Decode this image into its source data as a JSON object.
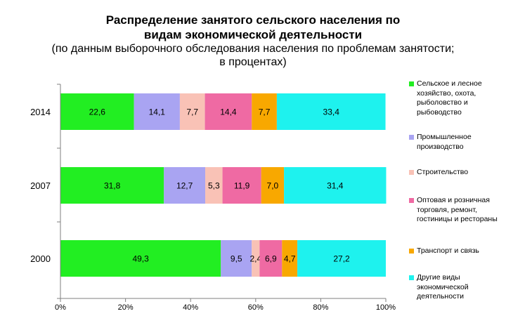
{
  "title": {
    "line1": "Распределение занятого сельского населения по",
    "line2": "видам экономической деятельности",
    "subtitle_line1": "(по данным выборочного обследования населения по проблемам занятости;",
    "subtitle_line2": "в процентах)"
  },
  "chart_data": {
    "type": "bar",
    "orientation": "horizontal",
    "stacked": true,
    "categories": [
      "2014",
      "2007",
      "2000"
    ],
    "series": [
      {
        "name": "Сельское и лесное хозяйство, охота, рыболовство и рыбоводство",
        "color": "#22ee22",
        "values": [
          22.6,
          31.8,
          49.3
        ],
        "labels": [
          "22,6",
          "31,8",
          "49,3"
        ]
      },
      {
        "name": "Промышленное производство",
        "color": "#a9a4f2",
        "values": [
          14.1,
          12.7,
          9.5
        ],
        "labels": [
          "14,1",
          "12,7",
          "9,5"
        ]
      },
      {
        "name": "Строительство",
        "color": "#f9c2b6",
        "values": [
          7.7,
          5.3,
          2.4
        ],
        "labels": [
          "7,7",
          "5,3",
          "2,4"
        ]
      },
      {
        "name": "Оптовая и розничная торговля, ремонт, гостиницы и рестораны",
        "color": "#ef6aa3",
        "values": [
          14.4,
          11.9,
          6.9
        ],
        "labels": [
          "14,4",
          "11,9",
          "6,9"
        ]
      },
      {
        "name": "Транспорт и связь",
        "color": "#f8a800",
        "values": [
          7.7,
          7.0,
          4.7
        ],
        "labels": [
          "7,7",
          "7,0",
          "4,7"
        ]
      },
      {
        "name": "Другие виды экономической деятельности",
        "color": "#1ef2ee",
        "values": [
          33.4,
          31.4,
          27.2
        ],
        "labels": [
          "33,4",
          "31,4",
          "27,2"
        ]
      }
    ],
    "x_ticks": [
      "0%",
      "20%",
      "40%",
      "60%",
      "80%",
      "100%"
    ],
    "xlim": [
      0,
      100
    ],
    "grid": false,
    "legend_position": "right"
  }
}
